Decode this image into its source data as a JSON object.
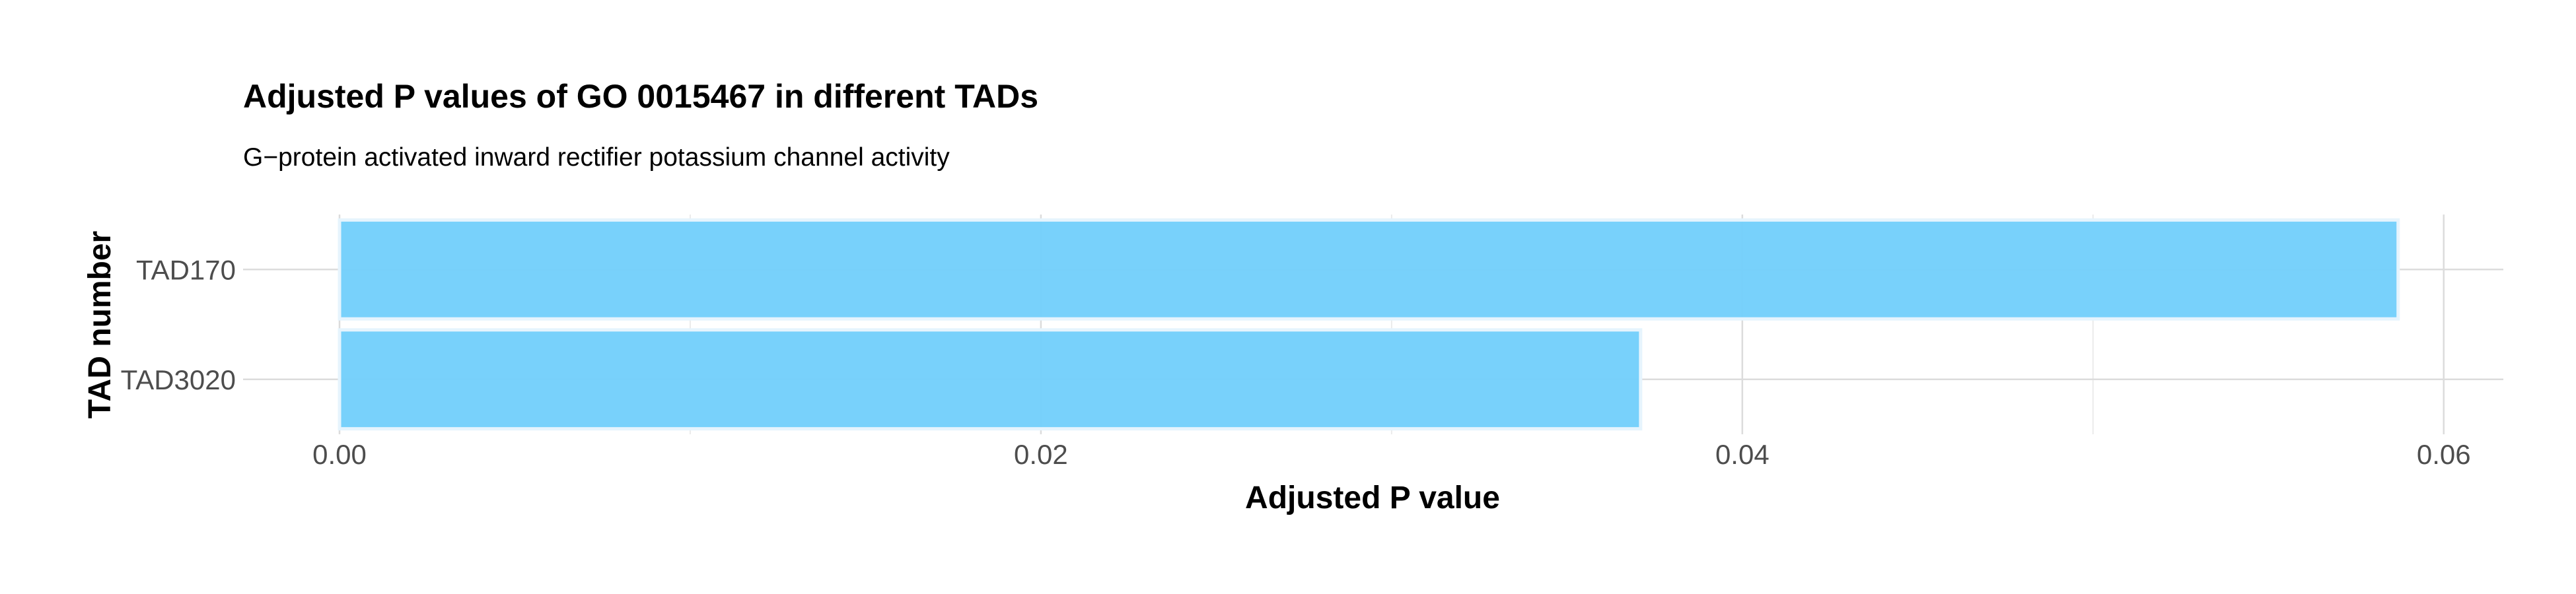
{
  "chart_data": {
    "type": "bar",
    "orientation": "horizontal",
    "title": "Adjusted P values of GO 0015467 in different TADs",
    "subtitle": "G−protein activated inward rectifier potassium channel activity",
    "xlabel": "Adjusted P value",
    "ylabel": "TAD number",
    "categories": [
      "TAD170",
      "TAD3020"
    ],
    "values": [
      0.0587,
      0.0371
    ],
    "xlim": [
      -0.00275,
      0.0617
    ],
    "x_ticks": [
      0.0,
      0.02,
      0.04,
      0.06
    ],
    "x_tick_labels": [
      "0.00",
      "0.02",
      "0.04",
      "0.06"
    ],
    "grid": true,
    "legend": "none",
    "colors": {
      "bar_fill": "#74CFFB",
      "bar_stroke": "#E6F4FD",
      "grid_major": "#DCDCDC",
      "grid_minor": "#EBEBEB",
      "tick_text": "#4D4D4D",
      "title_text": "#000000"
    }
  }
}
